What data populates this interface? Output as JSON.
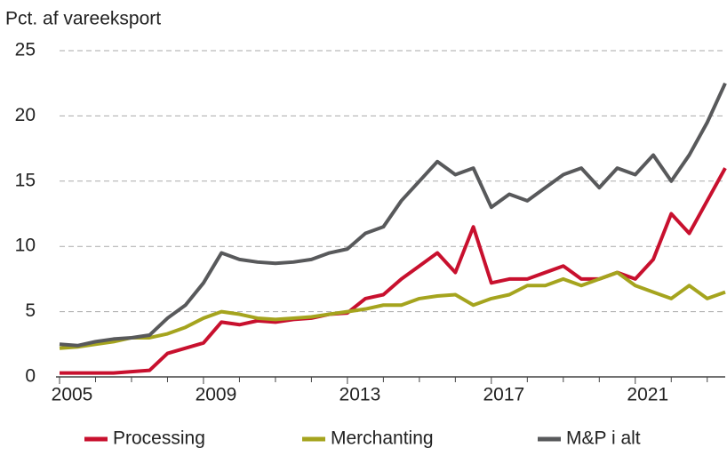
{
  "chart_data": {
    "type": "line",
    "y_label": "Pct. af vareeksport",
    "x": [
      2005,
      2005.5,
      2006,
      2006.5,
      2007,
      2007.5,
      2008,
      2008.5,
      2009,
      2009.5,
      2010,
      2010.5,
      2011,
      2011.5,
      2012,
      2012.5,
      2013,
      2013.5,
      2014,
      2014.5,
      2015,
      2015.5,
      2016,
      2016.5,
      2017,
      2017.5,
      2018,
      2018.5,
      2019,
      2019.5,
      2020,
      2020.5,
      2021,
      2021.5,
      2022,
      2022.5,
      2023,
      2023.5
    ],
    "series": [
      {
        "name": "Processing",
        "color": "#c8102e",
        "values": [
          0.3,
          0.3,
          0.3,
          0.3,
          0.4,
          0.5,
          1.8,
          2.2,
          2.6,
          4.2,
          4,
          4.3,
          4.2,
          4.4,
          4.5,
          4.8,
          4.9,
          6,
          6.3,
          7.5,
          8.5,
          9.5,
          8,
          11.5,
          7.2,
          7.5,
          7.5,
          8,
          8.5,
          7.5,
          7.5,
          8,
          7.5,
          9,
          12.5,
          11,
          13.5,
          16
        ]
      },
      {
        "name": "Merchanting",
        "color": "#a5a41e",
        "values": [
          2.2,
          2.3,
          2.5,
          2.7,
          3,
          3,
          3.3,
          3.8,
          4.5,
          5,
          4.8,
          4.5,
          4.4,
          4.5,
          4.6,
          4.8,
          5,
          5.2,
          5.5,
          5.5,
          6,
          6.2,
          6.3,
          5.5,
          6,
          6.3,
          7,
          7,
          7.5,
          7,
          7.5,
          8,
          7,
          6.5,
          6,
          7,
          6,
          6.5
        ]
      },
      {
        "name": "M&P i alt",
        "color": "#58595b",
        "values": [
          2.5,
          2.4,
          2.7,
          2.9,
          3,
          3.2,
          4.5,
          5.5,
          7.2,
          9.5,
          9,
          8.8,
          8.7,
          8.8,
          9,
          9.5,
          9.8,
          11,
          11.5,
          13.5,
          15,
          16.5,
          15.5,
          16,
          13,
          14,
          13.5,
          14.5,
          15.5,
          16,
          14.5,
          16,
          15.5,
          17,
          15,
          17,
          19.5,
          22.5
        ]
      }
    ],
    "xlim": [
      2005,
      2023.5
    ],
    "xticks": [
      2005,
      2009,
      2013,
      2017,
      2021
    ],
    "xminorticks": [
      2006,
      2007,
      2008,
      2010,
      2011,
      2012,
      2014,
      2015,
      2016,
      2018,
      2019,
      2020,
      2022,
      2023
    ],
    "ylim": [
      0,
      25
    ],
    "yticks": [
      0,
      5,
      10,
      15,
      20,
      25
    ],
    "grid": true,
    "legend": "bottom"
  }
}
